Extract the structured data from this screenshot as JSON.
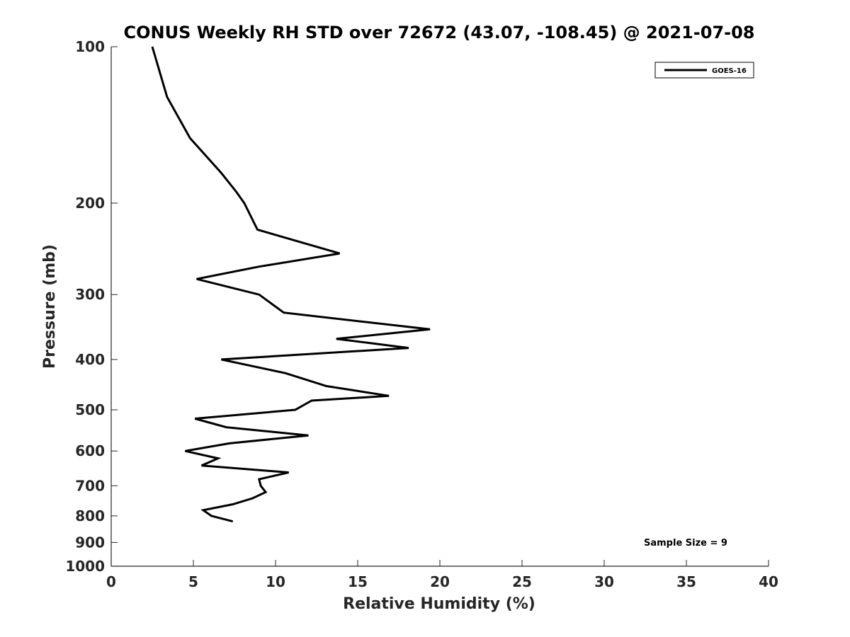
{
  "chart_data": {
    "type": "line",
    "title": "CONUS Weekly RH STD over 72672 (43.07, -108.45) @ 2021-07-08",
    "xlabel": "Relative Humidity (%)",
    "ylabel": "Pressure (mb)",
    "xlim": [
      0,
      40
    ],
    "ylim": [
      100,
      1000
    ],
    "y_scale": "log",
    "y_reversed": true,
    "x_ticks": [
      0,
      5,
      10,
      15,
      20,
      25,
      30,
      35,
      40
    ],
    "y_ticks": [
      100,
      200,
      300,
      400,
      500,
      600,
      700,
      800,
      900,
      1000
    ],
    "grid": false,
    "legend_position": "top-right",
    "annotation": "Sample Size = 9",
    "series": [
      {
        "name": "GOES-16",
        "color": "#000000",
        "points": [
          {
            "x": 2.5,
            "p": 100
          },
          {
            "x": 3.4,
            "p": 125
          },
          {
            "x": 4.8,
            "p": 150
          },
          {
            "x": 6.7,
            "p": 175
          },
          {
            "x": 7.6,
            "p": 190
          },
          {
            "x": 8.1,
            "p": 200
          },
          {
            "x": 8.9,
            "p": 225
          },
          {
            "x": 13.9,
            "p": 250
          },
          {
            "x": 9.0,
            "p": 265
          },
          {
            "x": 5.2,
            "p": 280
          },
          {
            "x": 9.0,
            "p": 300
          },
          {
            "x": 10.5,
            "p": 325
          },
          {
            "x": 19.4,
            "p": 350
          },
          {
            "x": 13.7,
            "p": 365
          },
          {
            "x": 18.1,
            "p": 380
          },
          {
            "x": 6.7,
            "p": 400
          },
          {
            "x": 10.6,
            "p": 425
          },
          {
            "x": 13.1,
            "p": 450
          },
          {
            "x": 16.9,
            "p": 470
          },
          {
            "x": 12.2,
            "p": 480
          },
          {
            "x": 11.2,
            "p": 500
          },
          {
            "x": 5.1,
            "p": 520
          },
          {
            "x": 7.0,
            "p": 540
          },
          {
            "x": 12.0,
            "p": 560
          },
          {
            "x": 7.2,
            "p": 580
          },
          {
            "x": 4.5,
            "p": 600
          },
          {
            "x": 6.5,
            "p": 620
          },
          {
            "x": 5.5,
            "p": 640
          },
          {
            "x": 10.8,
            "p": 660
          },
          {
            "x": 9.0,
            "p": 680
          },
          {
            "x": 9.1,
            "p": 700
          },
          {
            "x": 9.4,
            "p": 720
          },
          {
            "x": 8.6,
            "p": 740
          },
          {
            "x": 7.4,
            "p": 760
          },
          {
            "x": 5.6,
            "p": 780
          },
          {
            "x": 6.1,
            "p": 800
          },
          {
            "x": 7.4,
            "p": 820
          }
        ]
      }
    ]
  }
}
